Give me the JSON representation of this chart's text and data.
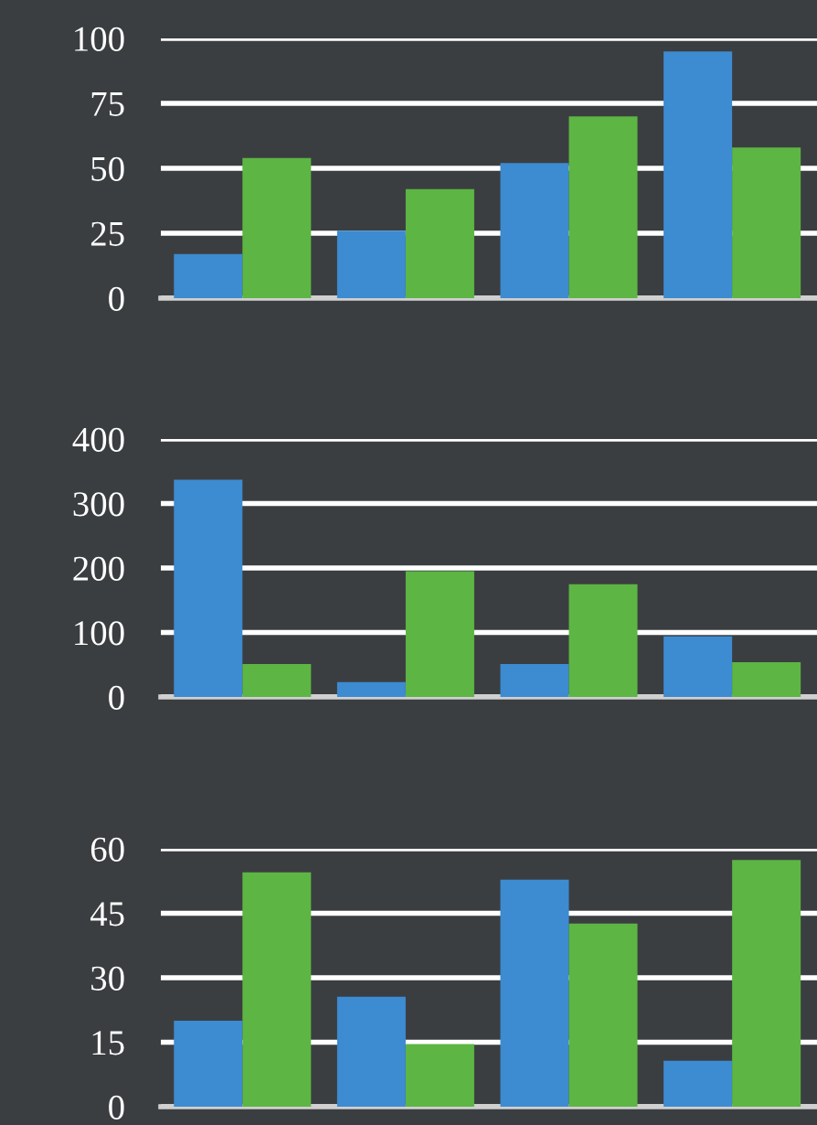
{
  "chart_data": [
    {
      "type": "bar",
      "categories": [
        null,
        null,
        null,
        null
      ],
      "series": [
        {
          "color": "#3d8bd1",
          "values": [
            17,
            26,
            52,
            95
          ]
        },
        {
          "color": "#5db544",
          "values": [
            54,
            42,
            70,
            58
          ]
        }
      ],
      "ylim": [
        0,
        100
      ],
      "yticks": [
        0,
        25,
        50,
        75,
        100
      ],
      "grid": "y"
    },
    {
      "type": "bar",
      "categories": [
        null,
        null,
        null,
        null
      ],
      "series": [
        {
          "color": "#3d8bd1",
          "values": [
            337,
            23,
            51,
            94
          ]
        },
        {
          "color": "#5db544",
          "values": [
            51,
            195,
            175,
            54
          ]
        }
      ],
      "ylim": [
        0,
        400
      ],
      "yticks": [
        0,
        100,
        200,
        300,
        400
      ],
      "grid": "y"
    },
    {
      "type": "bar",
      "categories": [
        null,
        null,
        null,
        null
      ],
      "series": [
        {
          "color": "#3d8bd1",
          "values": [
            20,
            25.6,
            52.8,
            10.7
          ]
        },
        {
          "color": "#5db544",
          "values": [
            54.5,
            14.6,
            42.6,
            57.4
          ]
        }
      ],
      "ylim": [
        0,
        60
      ],
      "yticks": [
        0,
        15,
        30,
        45,
        60
      ],
      "grid": "y"
    }
  ]
}
